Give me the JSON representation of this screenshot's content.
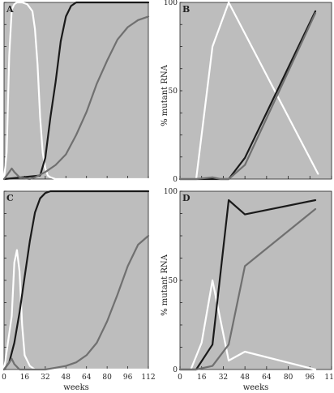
{
  "shared": {
    "xlabel": "weeks",
    "ylabel": "% mutant RNA",
    "x_ticks": [
      0,
      16,
      32,
      48,
      64,
      80,
      96,
      112
    ],
    "y_ticks": [
      0,
      50,
      100
    ]
  },
  "chart_data": [
    {
      "type": "line",
      "panel": "A",
      "xlim": [
        0,
        112
      ],
      "ylim": [
        0,
        100
      ],
      "x_tick_labels": [],
      "y_tick_labels": [],
      "xlabel": "",
      "ylabel": "",
      "series": [
        {
          "color": "#ffffff",
          "x": [
            0,
            2,
            4,
            6,
            8,
            10,
            14,
            18,
            22,
            24,
            26,
            28,
            30,
            32,
            34,
            36,
            40,
            112
          ],
          "y": [
            0,
            15,
            70,
            96,
            99,
            100,
            100,
            99,
            95,
            85,
            65,
            35,
            15,
            6,
            2,
            1,
            0,
            0
          ]
        },
        {
          "color": "#1a1a1a",
          "x": [
            0,
            28,
            32,
            36,
            40,
            44,
            48,
            52,
            56,
            112
          ],
          "y": [
            0,
            2,
            12,
            35,
            55,
            78,
            92,
            98,
            100,
            100
          ]
        },
        {
          "color": "#707070",
          "x": [
            0,
            4,
            6,
            8,
            12,
            20,
            24,
            32,
            40,
            48,
            56,
            64,
            72,
            80,
            88,
            96,
            104,
            112
          ],
          "y": [
            0,
            4,
            6,
            4,
            1,
            0,
            1,
            4,
            8,
            14,
            25,
            38,
            54,
            67,
            79,
            86,
            90,
            92
          ]
        }
      ]
    },
    {
      "type": "line",
      "panel": "B",
      "xlim": [
        0,
        112
      ],
      "ylim": [
        0,
        100
      ],
      "x_tick_labels": [],
      "y_tick_labels": [
        "0",
        "50",
        "100"
      ],
      "xlabel": "",
      "ylabel": "% mutant RNA",
      "series": [
        {
          "color": "#ffffff",
          "x": [
            0,
            12,
            24,
            36,
            102
          ],
          "y": [
            0,
            0,
            75,
            100,
            3
          ]
        },
        {
          "color": "#1a1a1a",
          "x": [
            0,
            36,
            48,
            100
          ],
          "y": [
            0,
            0,
            12,
            95
          ]
        },
        {
          "color": "#707070",
          "x": [
            0,
            12,
            24,
            30,
            36,
            48,
            100
          ],
          "y": [
            0,
            0,
            1,
            0,
            0,
            8,
            94
          ]
        }
      ]
    },
    {
      "type": "line",
      "panel": "C",
      "xlim": [
        0,
        112
      ],
      "ylim": [
        0,
        100
      ],
      "x_tick_labels": [
        "0",
        "16",
        "32",
        "48",
        "64",
        "80",
        "96",
        "112"
      ],
      "y_tick_labels": [],
      "xlabel": "weeks",
      "ylabel": "",
      "series": [
        {
          "color": "#ffffff",
          "x": [
            0,
            6,
            8,
            10,
            12,
            14,
            16,
            20,
            24,
            28,
            112
          ],
          "y": [
            0,
            30,
            60,
            67,
            55,
            25,
            8,
            2,
            0,
            0,
            0
          ]
        },
        {
          "color": "#1a1a1a",
          "x": [
            0,
            4,
            8,
            12,
            16,
            20,
            24,
            28,
            32,
            36,
            40,
            112
          ],
          "y": [
            0,
            4,
            15,
            32,
            52,
            72,
            88,
            96,
            99,
            100,
            100,
            100
          ]
        },
        {
          "color": "#707070",
          "x": [
            0,
            4,
            6,
            8,
            12,
            16,
            24,
            32,
            40,
            48,
            56,
            64,
            72,
            80,
            88,
            96,
            104,
            112
          ],
          "y": [
            0,
            4,
            6,
            3,
            0,
            0,
            0,
            0,
            1,
            2,
            4,
            8,
            15,
            27,
            42,
            58,
            70,
            75
          ]
        }
      ]
    },
    {
      "type": "line",
      "panel": "D",
      "xlim": [
        0,
        112
      ],
      "ylim": [
        0,
        100
      ],
      "x_tick_labels": [
        "0",
        "16",
        "32",
        "48",
        "64",
        "80",
        "96",
        "112"
      ],
      "y_tick_labels": [
        "0",
        "50",
        "100"
      ],
      "xlabel": "weeks",
      "ylabel": "% mutant RNA",
      "series": [
        {
          "color": "#ffffff",
          "x": [
            0,
            8,
            16,
            24,
            36,
            48,
            100
          ],
          "y": [
            0,
            0,
            15,
            50,
            5,
            10,
            0
          ]
        },
        {
          "color": "#1a1a1a",
          "x": [
            0,
            12,
            24,
            36,
            48,
            100
          ],
          "y": [
            0,
            0,
            14,
            95,
            87,
            95
          ]
        },
        {
          "color": "#707070",
          "x": [
            0,
            12,
            24,
            36,
            48,
            100
          ],
          "y": [
            0,
            0,
            2,
            14,
            58,
            90
          ]
        }
      ]
    }
  ]
}
